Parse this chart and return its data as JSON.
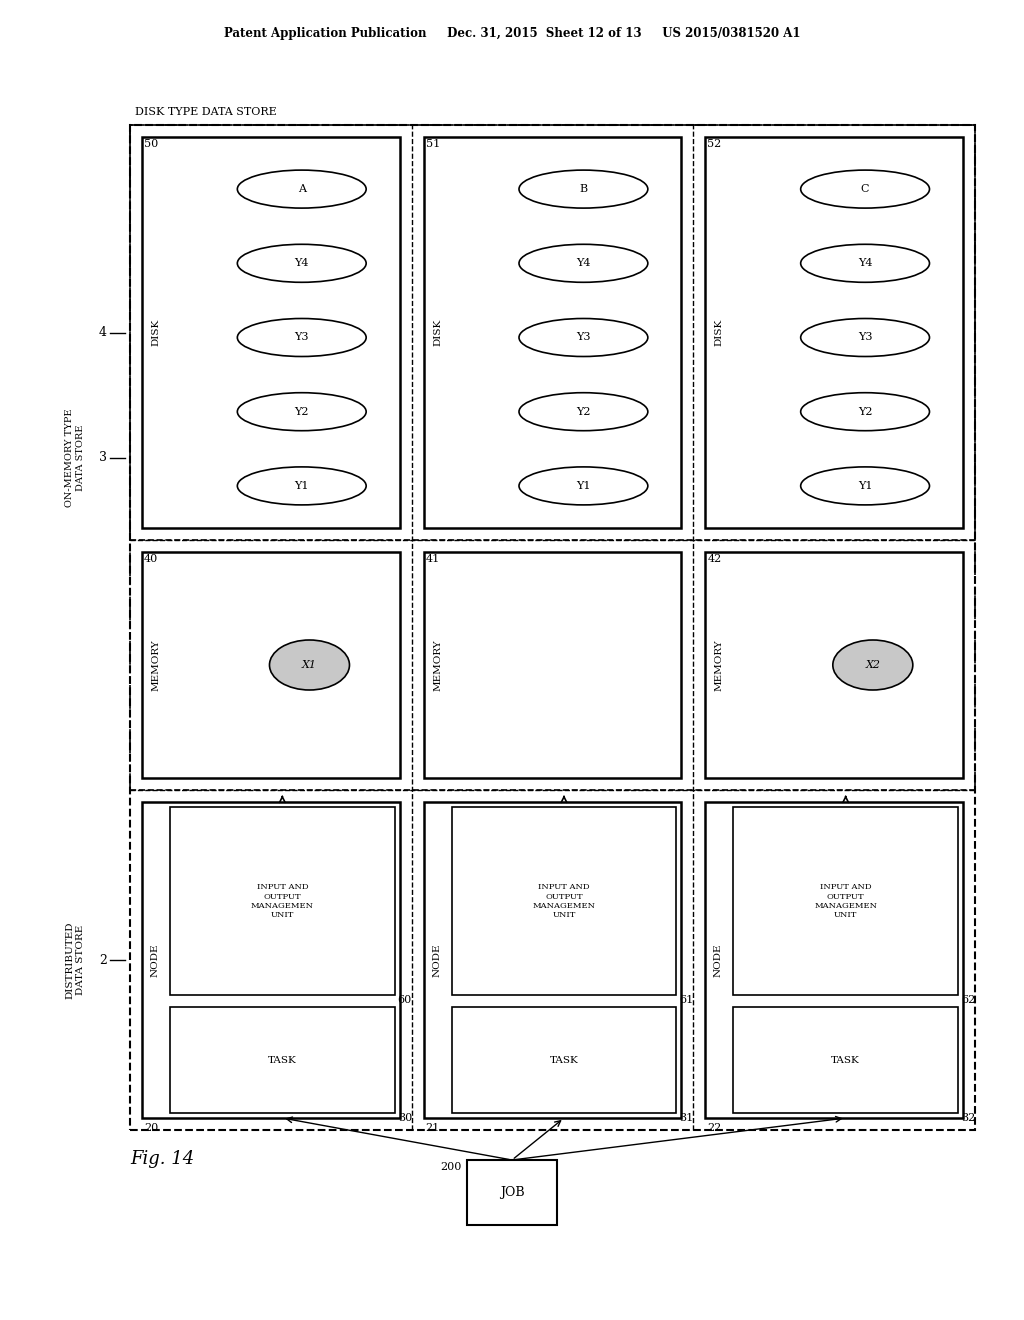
{
  "bg_color": "#ffffff",
  "header_text": "Patent Application Publication     Dec. 31, 2015  Sheet 12 of 13     US 2015/0381520 A1",
  "fig_label": "Fig. 14",
  "node_labels": [
    "20",
    "21",
    "22"
  ],
  "task_labels": [
    "30",
    "31",
    "32"
  ],
  "io_labels": [
    "60",
    "61",
    "62"
  ],
  "memory_labels": [
    "40",
    "41",
    "42"
  ],
  "disk_labels": [
    "50",
    "51",
    "52"
  ],
  "disk_data_sets": [
    [
      "A",
      "Y4",
      "Y3",
      "Y2",
      "Y1"
    ],
    [
      "B",
      "Y4",
      "Y3",
      "Y2",
      "Y1"
    ],
    [
      "C",
      "Y4",
      "Y3",
      "Y2",
      "Y1"
    ]
  ],
  "memory_data": [
    "X1",
    "",
    "X2"
  ],
  "job_label": "200",
  "label_2": "2",
  "label_3": "3",
  "label_4": "4",
  "dist_label": "DISTRIBUTED\nDATA STORE",
  "mem_type_label": "ON-MEMORY TYPE\nDATA STORE",
  "disk_type_label": "DISK TYPE DATA STORE"
}
